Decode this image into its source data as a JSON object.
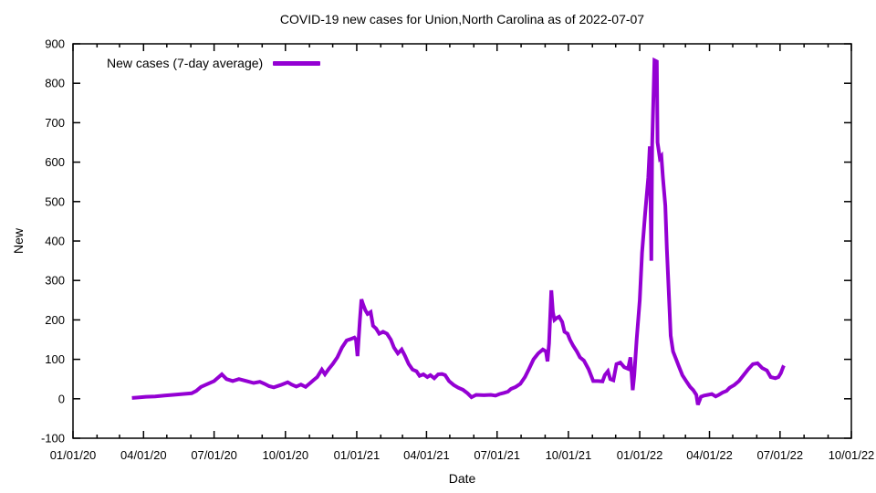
{
  "chart_data": {
    "type": "line",
    "title": "COVID-19 new cases for Union,North Carolina as of 2022-07-07",
    "xlabel": "Date",
    "ylabel": "New",
    "legend": "New cases (7-day average)",
    "legend_position": "top-left",
    "grid": false,
    "line_color": "#9400d3",
    "ylim": [
      -100,
      900
    ],
    "xlim": [
      "2020-01-01",
      "2022-10-01"
    ],
    "y_ticks": [
      -100,
      0,
      100,
      200,
      300,
      400,
      500,
      600,
      700,
      800,
      900
    ],
    "x_ticks": [
      {
        "label": "01/01/20",
        "date": "2020-01-01"
      },
      {
        "label": "04/01/20",
        "date": "2020-04-01"
      },
      {
        "label": "07/01/20",
        "date": "2020-07-01"
      },
      {
        "label": "10/01/20",
        "date": "2020-10-01"
      },
      {
        "label": "01/01/21",
        "date": "2021-01-01"
      },
      {
        "label": "04/01/21",
        "date": "2021-04-01"
      },
      {
        "label": "07/01/21",
        "date": "2021-07-01"
      },
      {
        "label": "10/01/21",
        "date": "2021-10-01"
      },
      {
        "label": "01/01/22",
        "date": "2022-01-01"
      },
      {
        "label": "04/01/22",
        "date": "2022-04-01"
      },
      {
        "label": "07/01/22",
        "date": "2022-07-01"
      },
      {
        "label": "10/01/22",
        "date": "2022-10-01"
      }
    ],
    "series": [
      {
        "name": "New cases (7-day average)",
        "color": "#9400d3",
        "points": [
          [
            "2020-03-17",
            2
          ],
          [
            "2020-03-23",
            3
          ],
          [
            "2020-04-04",
            5
          ],
          [
            "2020-04-16",
            6
          ],
          [
            "2020-04-28",
            8
          ],
          [
            "2020-05-09",
            10
          ],
          [
            "2020-05-21",
            12
          ],
          [
            "2020-06-02",
            14
          ],
          [
            "2020-06-08",
            20
          ],
          [
            "2020-06-14",
            30
          ],
          [
            "2020-06-23",
            38
          ],
          [
            "2020-07-01",
            45
          ],
          [
            "2020-07-07",
            55
          ],
          [
            "2020-07-11",
            62
          ],
          [
            "2020-07-17",
            50
          ],
          [
            "2020-07-25",
            45
          ],
          [
            "2020-08-02",
            50
          ],
          [
            "2020-08-12",
            45
          ],
          [
            "2020-08-21",
            40
          ],
          [
            "2020-08-29",
            43
          ],
          [
            "2020-09-04",
            38
          ],
          [
            "2020-09-10",
            32
          ],
          [
            "2020-09-16",
            29
          ],
          [
            "2020-09-25",
            35
          ],
          [
            "2020-10-04",
            42
          ],
          [
            "2020-10-09",
            36
          ],
          [
            "2020-10-15",
            31
          ],
          [
            "2020-10-21",
            36
          ],
          [
            "2020-10-27",
            30
          ],
          [
            "2020-11-02",
            40
          ],
          [
            "2020-11-06",
            47
          ],
          [
            "2020-11-11",
            55
          ],
          [
            "2020-11-17",
            74
          ],
          [
            "2020-11-21",
            62
          ],
          [
            "2020-11-26",
            76
          ],
          [
            "2020-12-01",
            88
          ],
          [
            "2020-12-07",
            105
          ],
          [
            "2020-12-13",
            130
          ],
          [
            "2020-12-19",
            148
          ],
          [
            "2020-12-25",
            152
          ],
          [
            "2020-12-29",
            155
          ],
          [
            "2020-12-31",
            150
          ],
          [
            "2021-01-02",
            108
          ],
          [
            "2021-01-05",
            200
          ],
          [
            "2021-01-07",
            252
          ],
          [
            "2021-01-09",
            240
          ],
          [
            "2021-01-12",
            225
          ],
          [
            "2021-01-15",
            215
          ],
          [
            "2021-01-19",
            220
          ],
          [
            "2021-01-22",
            185
          ],
          [
            "2021-01-26",
            178
          ],
          [
            "2021-01-30",
            165
          ],
          [
            "2021-02-04",
            170
          ],
          [
            "2021-02-09",
            165
          ],
          [
            "2021-02-14",
            150
          ],
          [
            "2021-02-18",
            130
          ],
          [
            "2021-02-23",
            115
          ],
          [
            "2021-02-28",
            125
          ],
          [
            "2021-03-04",
            110
          ],
          [
            "2021-03-09",
            88
          ],
          [
            "2021-03-14",
            74
          ],
          [
            "2021-03-19",
            70
          ],
          [
            "2021-03-23",
            58
          ],
          [
            "2021-03-28",
            62
          ],
          [
            "2021-04-02",
            55
          ],
          [
            "2021-04-06",
            60
          ],
          [
            "2021-04-11",
            52
          ],
          [
            "2021-04-16",
            62
          ],
          [
            "2021-04-21",
            63
          ],
          [
            "2021-04-25",
            60
          ],
          [
            "2021-04-30",
            45
          ],
          [
            "2021-05-06",
            35
          ],
          [
            "2021-05-12",
            28
          ],
          [
            "2021-05-18",
            23
          ],
          [
            "2021-05-24",
            14
          ],
          [
            "2021-05-29",
            4
          ],
          [
            "2021-06-04",
            10
          ],
          [
            "2021-06-14",
            9
          ],
          [
            "2021-06-23",
            10
          ],
          [
            "2021-06-29",
            8
          ],
          [
            "2021-07-04",
            12
          ],
          [
            "2021-07-10",
            15
          ],
          [
            "2021-07-15",
            18
          ],
          [
            "2021-07-19",
            25
          ],
          [
            "2021-07-25",
            30
          ],
          [
            "2021-07-31",
            38
          ],
          [
            "2021-08-06",
            55
          ],
          [
            "2021-08-11",
            75
          ],
          [
            "2021-08-17",
            100
          ],
          [
            "2021-08-23",
            115
          ],
          [
            "2021-08-29",
            125
          ],
          [
            "2021-09-02",
            120
          ],
          [
            "2021-09-04",
            95
          ],
          [
            "2021-09-06",
            140
          ],
          [
            "2021-09-09",
            275
          ],
          [
            "2021-09-11",
            220
          ],
          [
            "2021-09-13",
            200
          ],
          [
            "2021-09-16",
            205
          ],
          [
            "2021-09-19",
            208
          ],
          [
            "2021-09-23",
            195
          ],
          [
            "2021-09-26",
            170
          ],
          [
            "2021-09-30",
            165
          ],
          [
            "2021-10-03",
            150
          ],
          [
            "2021-10-07",
            135
          ],
          [
            "2021-10-12",
            120
          ],
          [
            "2021-10-16",
            105
          ],
          [
            "2021-10-21",
            97
          ],
          [
            "2021-10-27",
            75
          ],
          [
            "2021-11-02",
            45
          ],
          [
            "2021-11-08",
            45
          ],
          [
            "2021-11-14",
            44
          ],
          [
            "2021-11-17",
            60
          ],
          [
            "2021-11-21",
            70
          ],
          [
            "2021-11-24",
            50
          ],
          [
            "2021-11-28",
            47
          ],
          [
            "2021-12-02",
            88
          ],
          [
            "2021-12-07",
            92
          ],
          [
            "2021-12-12",
            80
          ],
          [
            "2021-12-17",
            76
          ],
          [
            "2021-12-20",
            105
          ],
          [
            "2021-12-23",
            22
          ],
          [
            "2021-12-25",
            60
          ],
          [
            "2021-12-28",
            150
          ],
          [
            "2022-01-01",
            250
          ],
          [
            "2022-01-04",
            370
          ],
          [
            "2022-01-08",
            470
          ],
          [
            "2022-01-12",
            560
          ],
          [
            "2022-01-14",
            640
          ],
          [
            "2022-01-16",
            350
          ],
          [
            "2022-01-17",
            645
          ],
          [
            "2022-01-20",
            858
          ],
          [
            "2022-01-23",
            855
          ],
          [
            "2022-01-24",
            650
          ],
          [
            "2022-01-27",
            610
          ],
          [
            "2022-01-29",
            615
          ],
          [
            "2022-01-31",
            560
          ],
          [
            "2022-02-03",
            490
          ],
          [
            "2022-02-05",
            380
          ],
          [
            "2022-02-08",
            250
          ],
          [
            "2022-02-10",
            160
          ],
          [
            "2022-02-13",
            120
          ],
          [
            "2022-02-17",
            100
          ],
          [
            "2022-02-20",
            85
          ],
          [
            "2022-02-25",
            60
          ],
          [
            "2022-03-02",
            45
          ],
          [
            "2022-03-07",
            30
          ],
          [
            "2022-03-11",
            22
          ],
          [
            "2022-03-15",
            10
          ],
          [
            "2022-03-17",
            -15
          ],
          [
            "2022-03-21",
            5
          ],
          [
            "2022-03-25",
            8
          ],
          [
            "2022-03-30",
            10
          ],
          [
            "2022-04-04",
            12
          ],
          [
            "2022-04-09",
            6
          ],
          [
            "2022-04-13",
            10
          ],
          [
            "2022-04-18",
            16
          ],
          [
            "2022-04-23",
            20
          ],
          [
            "2022-04-27",
            28
          ],
          [
            "2022-05-03",
            35
          ],
          [
            "2022-05-09",
            45
          ],
          [
            "2022-05-15",
            60
          ],
          [
            "2022-05-21",
            75
          ],
          [
            "2022-05-27",
            88
          ],
          [
            "2022-06-02",
            90
          ],
          [
            "2022-06-08",
            78
          ],
          [
            "2022-06-14",
            72
          ],
          [
            "2022-06-19",
            55
          ],
          [
            "2022-06-25",
            52
          ],
          [
            "2022-06-29",
            55
          ],
          [
            "2022-07-02",
            65
          ],
          [
            "2022-07-05",
            80
          ],
          [
            "2022-07-07",
            78
          ]
        ]
      }
    ]
  }
}
